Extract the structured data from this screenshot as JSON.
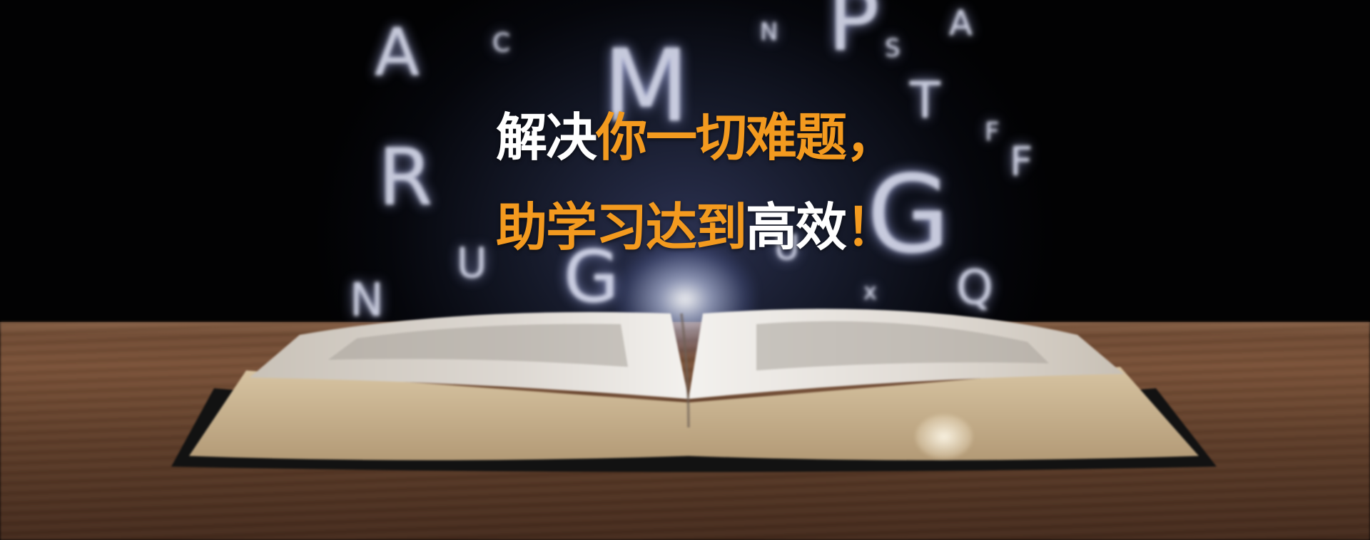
{
  "headline": {
    "line1": {
      "white": "解决",
      "orange": "你一切难题，"
    },
    "line2": {
      "orange": "助学习达到",
      "white": "高效",
      "mark": "！"
    }
  },
  "colors": {
    "accent": "#f39a1f",
    "text": "#ffffff",
    "background": "#05060b",
    "table": "#6e4a33"
  }
}
